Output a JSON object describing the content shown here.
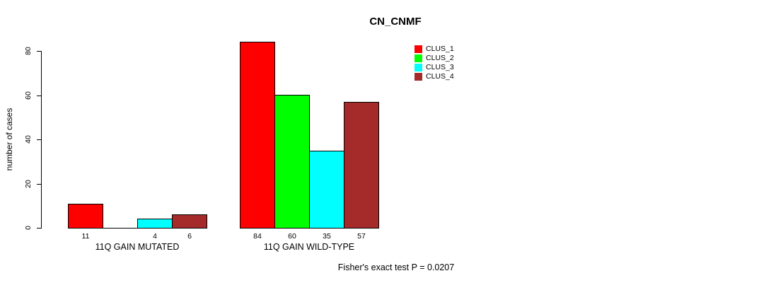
{
  "chart_data": {
    "type": "bar",
    "title": "CN_CNMF",
    "ylabel": "number of cases",
    "ylim": [
      0,
      80
    ],
    "yticks": [
      0,
      20,
      40,
      60,
      80
    ],
    "grid": false,
    "legend_position": "top-right",
    "categories": [
      "11Q GAIN MUTATED",
      "11Q GAIN WILD-TYPE"
    ],
    "series": [
      {
        "name": "CLUS_1",
        "color": "#ff0000",
        "values": [
          11,
          84
        ]
      },
      {
        "name": "CLUS_2",
        "color": "#00ff00",
        "values": [
          0,
          60
        ]
      },
      {
        "name": "CLUS_3",
        "color": "#00ffff",
        "values": [
          4,
          35
        ]
      },
      {
        "name": "CLUS_4",
        "color": "#a52a2a",
        "values": [
          6,
          57
        ]
      }
    ],
    "zero_value_labels_hidden": true,
    "annotation": "Fisher's exact test P = 0.0207",
    "colors": {
      "background": "#ffffff",
      "axis": "#000000",
      "text": "#000000",
      "bar_border": "#000000"
    }
  }
}
